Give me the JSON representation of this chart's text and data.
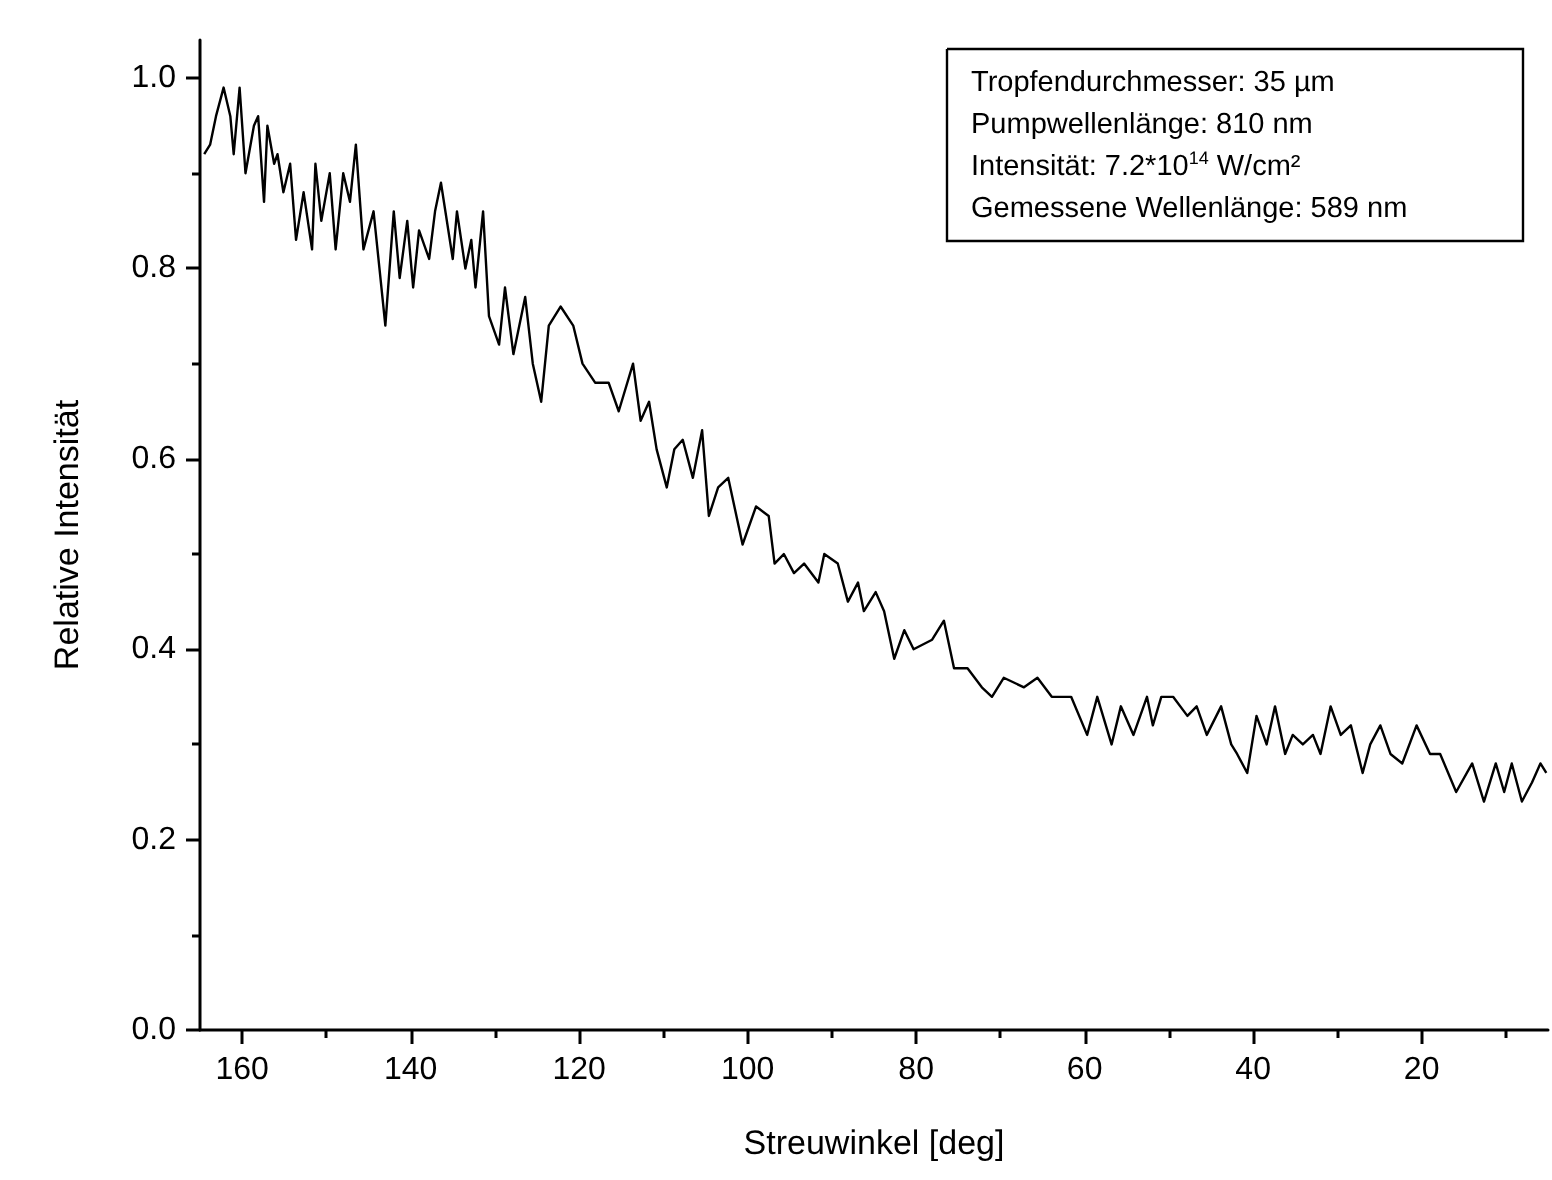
{
  "chart_data": {
    "type": "line",
    "xlabel": "Streuwinkel [deg]",
    "ylabel": "Relative Intensität",
    "annotations": [
      "Tropfendurchmesser: 35 µm",
      "Pumpwellenlänge: 810 nm",
      "Intensität: 7.2*10$^{14}$ W/cm²",
      "Gemessene Wellenlänge: 589 nm"
    ],
    "xlim": [
      165,
      5
    ],
    "xticks": [
      160,
      140,
      120,
      100,
      80,
      60,
      40,
      20
    ],
    "ylim": [
      0,
      1.04
    ],
    "yticks": [
      {
        "value": 0,
        "label": "0.0"
      },
      0.2,
      0.4,
      0.6,
      0.8,
      {
        "value": 1,
        "label": "1.0"
      }
    ],
    "marker": "none",
    "line_style": "solid",
    "series": [
      {
        "color": "#000000",
        "x": [
          164.5,
          163.8,
          163.1,
          162.2,
          161.4,
          161.0,
          160.3,
          159.6,
          158.6,
          158.1,
          157.4,
          157.0,
          156.2,
          155.8,
          155.1,
          154.3,
          153.6,
          152.7,
          151.7,
          151.3,
          150.6,
          149.6,
          148.9,
          148.0,
          147.2,
          146.5,
          145.6,
          144.4,
          143.7,
          143.0,
          142.0,
          141.3,
          140.4,
          139.7,
          139.0,
          137.8,
          137.1,
          136.4,
          135.0,
          134.5,
          133.5,
          132.8,
          132.3,
          131.4,
          130.7,
          129.5,
          128.8,
          127.8,
          126.4,
          125.5,
          124.5,
          123.6,
          122.2,
          120.7,
          119.6,
          118.1,
          116.5,
          115.3,
          113.6,
          112.7,
          111.7,
          110.8,
          109.6,
          108.7,
          107.7,
          106.5,
          105.4,
          104.6,
          103.5,
          102.3,
          100.6,
          99.0,
          97.5,
          96.8,
          95.7,
          94.5,
          93.3,
          91.6,
          90.9,
          89.3,
          88.1,
          86.9,
          86.2,
          84.8,
          83.8,
          82.6,
          81.4,
          80.3,
          78.1,
          76.7,
          75.5,
          73.9,
          72.2,
          71.0,
          69.6,
          67.2,
          65.6,
          63.9,
          61.6,
          59.7,
          58.5,
          56.8,
          55.7,
          54.2,
          52.6,
          51.9,
          50.9,
          49.5,
          47.8,
          46.7,
          45.5,
          43.8,
          42.6,
          41.9,
          40.7,
          39.6,
          38.4,
          37.4,
          36.2,
          35.3,
          34.1,
          32.9,
          32.0,
          30.8,
          29.6,
          28.4,
          27.0,
          26.1,
          24.9,
          23.7,
          22.3,
          20.6,
          19.0,
          17.8,
          15.9,
          14.0,
          12.6,
          11.2,
          10.2,
          9.3,
          8.1,
          6.9,
          5.9,
          5.2
        ],
        "values": [
          0.92,
          0.93,
          0.96,
          0.99,
          0.96,
          0.92,
          0.99,
          0.9,
          0.95,
          0.96,
          0.87,
          0.95,
          0.91,
          0.92,
          0.88,
          0.91,
          0.83,
          0.88,
          0.82,
          0.91,
          0.85,
          0.9,
          0.82,
          0.9,
          0.87,
          0.93,
          0.82,
          0.86,
          0.8,
          0.74,
          0.86,
          0.79,
          0.85,
          0.78,
          0.84,
          0.81,
          0.86,
          0.89,
          0.81,
          0.86,
          0.8,
          0.83,
          0.78,
          0.86,
          0.75,
          0.72,
          0.78,
          0.71,
          0.77,
          0.7,
          0.66,
          0.74,
          0.76,
          0.74,
          0.7,
          0.68,
          0.68,
          0.65,
          0.7,
          0.64,
          0.66,
          0.61,
          0.57,
          0.61,
          0.62,
          0.58,
          0.63,
          0.54,
          0.57,
          0.58,
          0.51,
          0.55,
          0.54,
          0.49,
          0.5,
          0.48,
          0.49,
          0.47,
          0.5,
          0.49,
          0.45,
          0.47,
          0.44,
          0.46,
          0.44,
          0.39,
          0.42,
          0.4,
          0.41,
          0.43,
          0.38,
          0.38,
          0.36,
          0.35,
          0.37,
          0.36,
          0.37,
          0.35,
          0.35,
          0.31,
          0.35,
          0.3,
          0.34,
          0.31,
          0.35,
          0.32,
          0.35,
          0.35,
          0.33,
          0.34,
          0.31,
          0.34,
          0.3,
          0.29,
          0.27,
          0.33,
          0.3,
          0.34,
          0.29,
          0.31,
          0.3,
          0.31,
          0.29,
          0.34,
          0.31,
          0.32,
          0.27,
          0.3,
          0.32,
          0.29,
          0.28,
          0.32,
          0.29,
          0.29,
          0.25,
          0.28,
          0.24,
          0.28,
          0.25,
          0.28,
          0.24,
          0.26,
          0.28,
          0.27
        ]
      }
    ]
  }
}
